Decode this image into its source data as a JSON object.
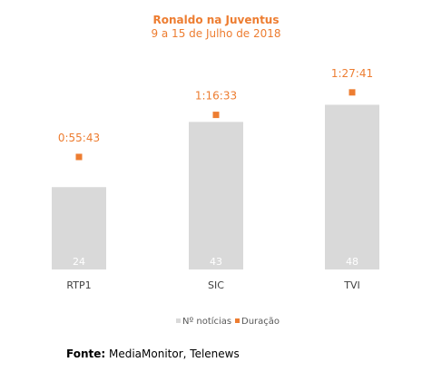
{
  "chart_data": {
    "type": "bar",
    "title": "Ronaldo na Juventus",
    "subtitle": "9 a 15 de Julho de 2018",
    "categories": [
      "RTP1",
      "SIC",
      "TVI"
    ],
    "series": [
      {
        "name": "Nº notícias",
        "type": "bar",
        "values": [
          24,
          43,
          48
        ],
        "color": "#D9D9D9"
      },
      {
        "name": "Duração",
        "type": "marker",
        "values": [
          "0:55:43",
          "1:16:33",
          "1:27:41"
        ],
        "seconds": [
          3343,
          4593,
          5261
        ],
        "color": "#ED7D31"
      }
    ],
    "legend_position": "bottom-right",
    "grid": false
  },
  "footer": {
    "label": "Fonte:",
    "text": " MediaMonitor, Telenews"
  }
}
